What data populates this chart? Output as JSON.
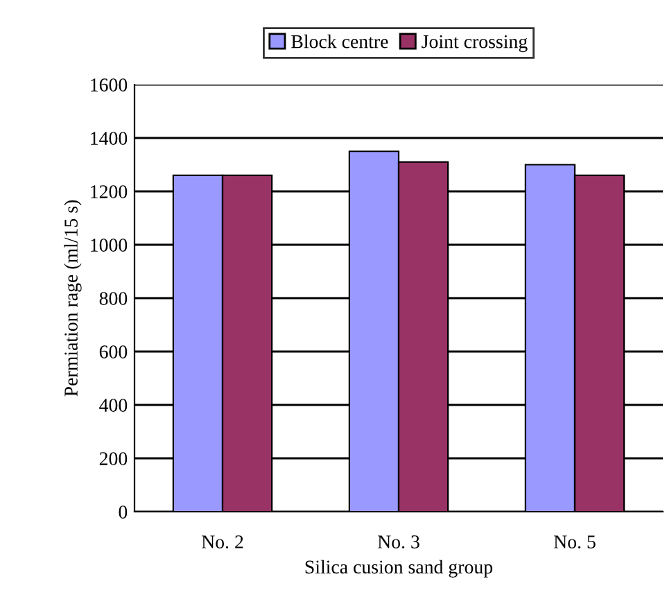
{
  "chart_data": {
    "type": "bar",
    "xlabel": "Silica cusion sand group",
    "ylabel": "Permiation rage (ml/15 s)",
    "categories": [
      "No. 2",
      "No. 3",
      "No. 5"
    ],
    "series": [
      {
        "name": "Block centre",
        "color": "#9999ff",
        "values": [
          1260,
          1350,
          1300
        ]
      },
      {
        "name": "Joint crossing",
        "color": "#993366",
        "values": [
          1260,
          1310,
          1260
        ]
      }
    ],
    "ylim": [
      0,
      1600
    ],
    "yticks": [
      0,
      200,
      400,
      600,
      800,
      1000,
      1200,
      1400,
      1600
    ],
    "grid": "y",
    "legend": "top"
  }
}
